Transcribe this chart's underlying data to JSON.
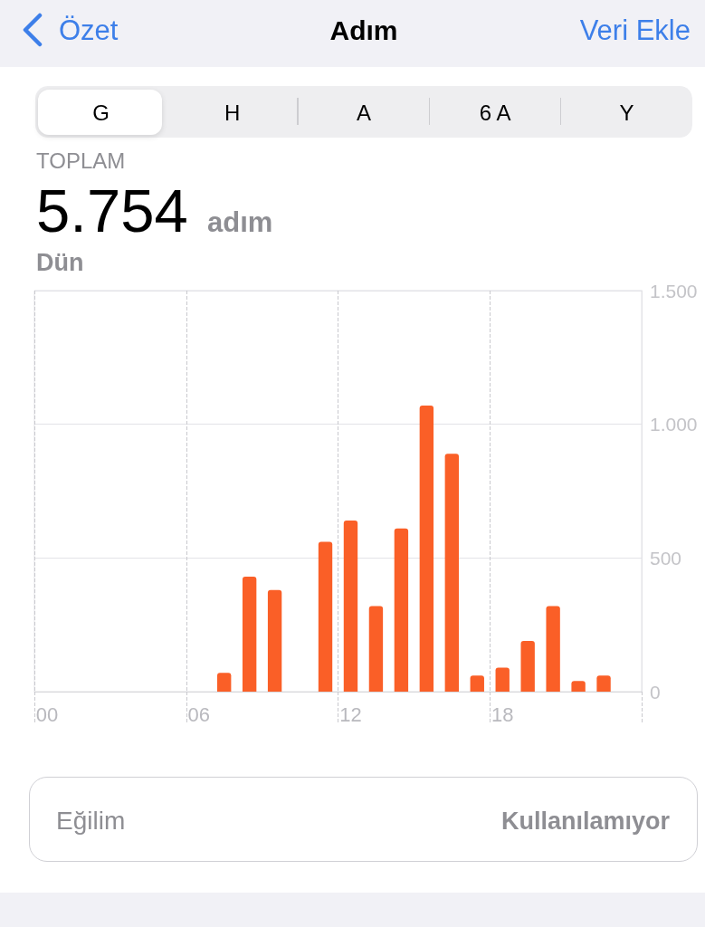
{
  "chart_data": {
    "type": "bar",
    "title": "Adım",
    "categories": [
      "00",
      null,
      null,
      null,
      null,
      null,
      "06",
      null,
      null,
      null,
      null,
      null,
      "12",
      null,
      null,
      null,
      null,
      null,
      "18",
      null,
      null,
      null,
      null,
      null
    ],
    "values": [
      null,
      null,
      null,
      null,
      null,
      null,
      null,
      70,
      430,
      380,
      null,
      560,
      640,
      320,
      610,
      1070,
      890,
      60,
      90,
      190,
      320,
      40,
      60,
      null
    ],
    "color": "#fa5f27",
    "ylim": [
      0,
      1500
    ],
    "yticks": [
      0,
      500,
      {
        "value": 1000,
        "label": "1.000"
      },
      {
        "value": 1500,
        "label": "1.500"
      }
    ],
    "grid": true,
    "annotations": [
      "Özet",
      "Veri Ekle",
      "G",
      "H",
      "A",
      "6 A",
      "Y",
      "TOPLAM",
      "5.754",
      "adım",
      "Dün",
      "Eğilim",
      "Kullanılamıyor"
    ]
  }
}
